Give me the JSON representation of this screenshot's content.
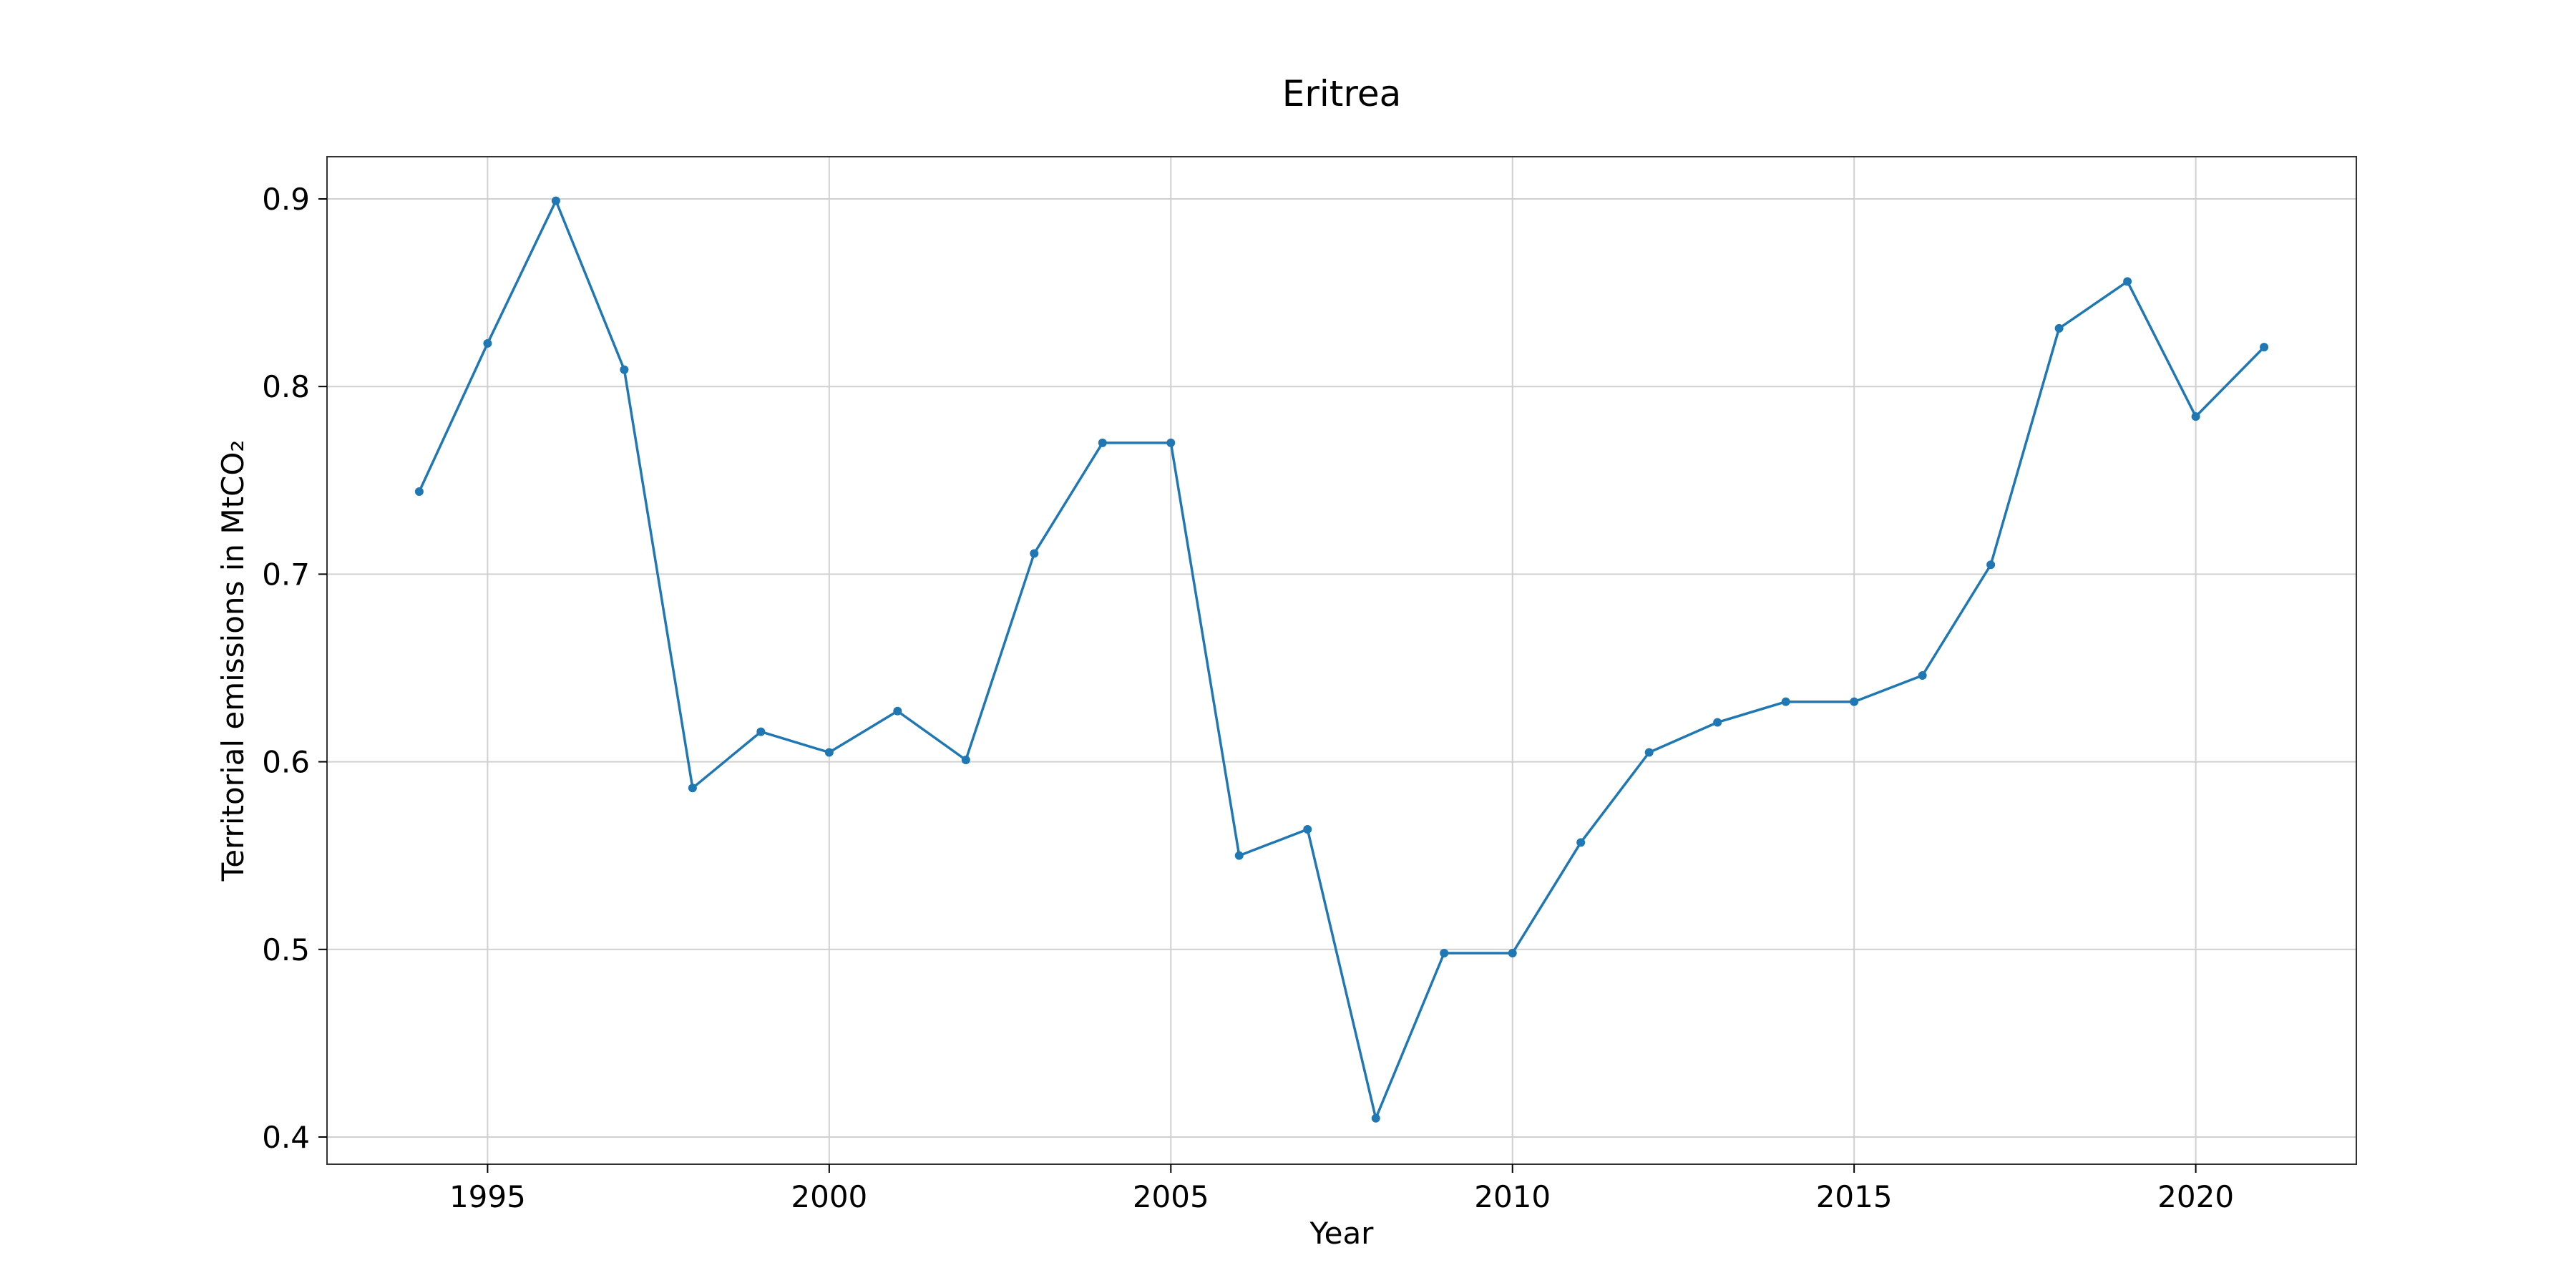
{
  "chart_data": {
    "type": "line",
    "title": "Eritrea",
    "xlabel": "Year",
    "ylabel": "Territorial emissions in MtCO₂",
    "xlim": [
      1992.65,
      2022.35
    ],
    "ylim": [
      0.3855,
      0.9225
    ],
    "xticks": [
      1995,
      2000,
      2005,
      2010,
      2015,
      2020
    ],
    "yticks": [
      0.4,
      0.5,
      0.6,
      0.7,
      0.8,
      0.9
    ],
    "grid": true,
    "legend": "none",
    "series": [
      {
        "color": "#1f77b4",
        "marker": "circle",
        "x": [
          1994,
          1995,
          1996,
          1997,
          1998,
          1999,
          2000,
          2001,
          2002,
          2003,
          2004,
          2005,
          2006,
          2007,
          2008,
          2009,
          2010,
          2011,
          2012,
          2013,
          2014,
          2015,
          2016,
          2017,
          2018,
          2019,
          2020,
          2021
        ],
        "y": [
          0.744,
          0.823,
          0.899,
          0.809,
          0.586,
          0.616,
          0.605,
          0.627,
          0.601,
          0.711,
          0.77,
          0.77,
          0.55,
          0.564,
          0.41,
          0.498,
          0.498,
          0.557,
          0.605,
          0.621,
          0.632,
          0.632,
          0.646,
          0.705,
          0.831,
          0.856,
          0.784,
          0.821
        ]
      }
    ]
  }
}
